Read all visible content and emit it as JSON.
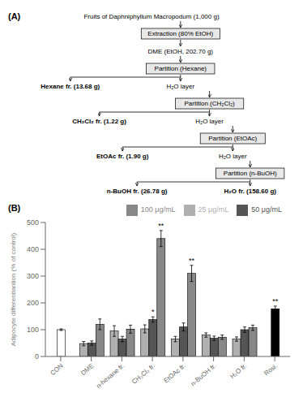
{
  "chart_data": [
    {
      "type": "flowchart",
      "title": "(A)",
      "annotations": [
        "Fruits of Daphniphyllum Macropodum (1,000 g)",
        "Extraction (80% EtOH)",
        "DME (EtOH, 202.70 g)",
        "Partition (Hexane)",
        "Hexane fr. (13.68 g)",
        "H₂O layer",
        "Partition (CH₂Cl₂)",
        "CH₂Cl₂ fr. (1.22 g)",
        "H₂O layer",
        "Partition (EtOAc)",
        "EtOAc fr. (1.90 g)",
        "H₂O layer",
        "Partition (n-BuOH)",
        "n-BuOH fr. (26.78 g)",
        "H₂O fr. (158.60 g)"
      ]
    },
    {
      "type": "bar",
      "title": "(B)",
      "categories": [
        "CON",
        "DME",
        "n-hexane fr.",
        "CH₂Cl₂ fr.",
        "EtOAc fr.",
        "n-BuOH fr.",
        "H₂O fr.",
        "Rosi."
      ],
      "ylabel": "Adipocyte differentiantion (% of control)",
      "ylim": [
        0,
        500
      ],
      "yticks": [
        0,
        100,
        200,
        300,
        400,
        500
      ],
      "legend": "upper right",
      "grid": false,
      "series": [
        {
          "name": "25 μg/mL",
          "color": "#b0b0b0",
          "values": [
            null,
            48,
            95,
            103,
            65,
            80,
            65,
            null
          ],
          "errors": [
            null,
            8,
            20,
            15,
            10,
            8,
            8,
            null
          ]
        },
        {
          "name": "50 μg/mL",
          "color": "#555555",
          "values": [
            null,
            50,
            65,
            138,
            110,
            68,
            100,
            null
          ],
          "errors": [
            null,
            8,
            10,
            10,
            15,
            8,
            10,
            null
          ]
        },
        {
          "name": "100 μg/mL",
          "color": "#888888",
          "values": [
            null,
            120,
            102,
            440,
            310,
            72,
            107,
            null
          ],
          "errors": [
            null,
            20,
            15,
            30,
            30,
            8,
            10,
            null
          ]
        },
        {
          "color": "#ffffff",
          "values": [
            100,
            null,
            null,
            null,
            null,
            null,
            null,
            null
          ],
          "errors": [
            3,
            null,
            null,
            null,
            null,
            null,
            null,
            null
          ]
        },
        {
          "color": "#000000",
          "values": [
            null,
            null,
            null,
            null,
            null,
            null,
            null,
            178
          ],
          "errors": [
            null,
            null,
            null,
            null,
            null,
            null,
            null,
            10
          ]
        }
      ],
      "annotations": [
        {
          "text": "**",
          "category": "CH₂Cl₂ fr.",
          "series": "100 μg/mL"
        },
        {
          "text": "*",
          "category": "CH₂Cl₂ fr.",
          "series": "50 μg/mL"
        },
        {
          "text": "**",
          "category": "EtOAc fr.",
          "series": "100 μg/mL"
        },
        {
          "text": "**",
          "category": "Rosi."
        }
      ]
    }
  ]
}
